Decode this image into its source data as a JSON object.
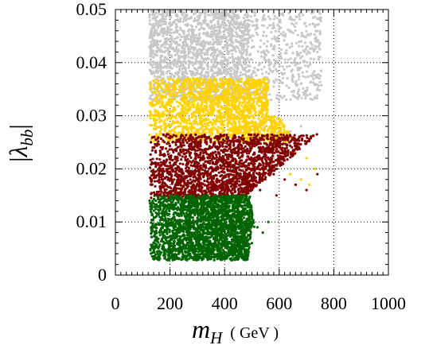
{
  "chart_data": {
    "type": "scatter",
    "title": "",
    "xlabel_main": "m",
    "xlabel_sub": "H",
    "xlabel_unit": "( GeV )",
    "ylabel_main": "λ",
    "ylabel_sub": "bb",
    "xlim": [
      0,
      1000
    ],
    "ylim": [
      0,
      0.05
    ],
    "x_ticks": [
      0,
      200,
      400,
      600,
      800,
      1000
    ],
    "x_tick_labels": [
      "0",
      "200",
      "400",
      "600",
      "800",
      "1000"
    ],
    "y_ticks": [
      0,
      0.01,
      0.02,
      0.03,
      0.04,
      0.05
    ],
    "y_tick_labels": [
      "0",
      "0.01",
      "0.02",
      "0.03",
      "0.04",
      "0.05"
    ],
    "grid": "dotted",
    "legend": "none",
    "series": [
      {
        "color": "#c8c8c8",
        "description_region": "y 0.035-0.05 broadly",
        "points": [
          [
            125,
            0.049
          ],
          [
            160,
            0.047
          ],
          [
            220,
            0.048
          ],
          [
            280,
            0.046
          ],
          [
            340,
            0.049
          ],
          [
            400,
            0.047
          ],
          [
            460,
            0.045
          ],
          [
            520,
            0.048
          ],
          [
            580,
            0.047
          ],
          [
            640,
            0.046
          ],
          [
            700,
            0.043
          ],
          [
            740,
            0.042
          ],
          [
            180,
            0.042
          ],
          [
            250,
            0.041
          ],
          [
            320,
            0.043
          ],
          [
            390,
            0.04
          ],
          [
            450,
            0.041
          ],
          [
            510,
            0.039
          ],
          [
            570,
            0.04
          ],
          [
            620,
            0.038
          ],
          [
            660,
            0.036
          ],
          [
            690,
            0.034
          ],
          [
            600,
            0.033
          ],
          [
            560,
            0.035
          ],
          [
            540,
            0.031
          ],
          [
            500,
            0.036
          ],
          [
            420,
            0.037
          ],
          [
            300,
            0.038
          ],
          [
            200,
            0.039
          ],
          [
            140,
            0.04
          ],
          [
            680,
            0.028
          ],
          [
            640,
            0.027
          ],
          [
            610,
            0.024
          ],
          [
            580,
            0.022
          ]
        ]
      },
      {
        "color": "#ffd200",
        "description_region": "y 0.025-0.037",
        "points": [
          [
            130,
            0.036
          ],
          [
            190,
            0.035
          ],
          [
            250,
            0.034
          ],
          [
            310,
            0.036
          ],
          [
            370,
            0.033
          ],
          [
            430,
            0.032
          ],
          [
            480,
            0.03
          ],
          [
            530,
            0.028
          ],
          [
            570,
            0.027
          ],
          [
            620,
            0.025
          ],
          [
            660,
            0.023
          ],
          [
            700,
            0.022
          ],
          [
            730,
            0.02
          ],
          [
            150,
            0.03
          ],
          [
            210,
            0.029
          ],
          [
            270,
            0.031
          ],
          [
            330,
            0.028
          ],
          [
            390,
            0.029
          ],
          [
            450,
            0.027
          ],
          [
            500,
            0.026
          ],
          [
            560,
            0.024
          ],
          [
            600,
            0.021
          ],
          [
            640,
            0.019
          ],
          [
            680,
            0.018
          ],
          [
            710,
            0.017
          ]
        ]
      },
      {
        "color": "#800000",
        "description_region": "y 0.015-0.026",
        "points": [
          [
            130,
            0.025
          ],
          [
            170,
            0.024
          ],
          [
            210,
            0.025
          ],
          [
            260,
            0.023
          ],
          [
            300,
            0.024
          ],
          [
            340,
            0.022
          ],
          [
            380,
            0.023
          ],
          [
            420,
            0.021
          ],
          [
            460,
            0.021
          ],
          [
            500,
            0.02
          ],
          [
            540,
            0.019
          ],
          [
            580,
            0.019
          ],
          [
            620,
            0.018
          ],
          [
            660,
            0.017
          ],
          [
            700,
            0.016
          ],
          [
            740,
            0.019
          ],
          [
            160,
            0.018
          ],
          [
            220,
            0.017
          ],
          [
            280,
            0.019
          ],
          [
            350,
            0.016
          ],
          [
            410,
            0.017
          ],
          [
            470,
            0.016
          ],
          [
            530,
            0.016
          ],
          [
            590,
            0.015
          ]
        ]
      },
      {
        "color": "#006400",
        "description_region": "y 0.003-0.015",
        "points": [
          [
            125,
            0.014
          ],
          [
            160,
            0.013
          ],
          [
            200,
            0.014
          ],
          [
            240,
            0.012
          ],
          [
            280,
            0.013
          ],
          [
            320,
            0.014
          ],
          [
            360,
            0.012
          ],
          [
            400,
            0.013
          ],
          [
            440,
            0.011
          ],
          [
            470,
            0.012
          ],
          [
            500,
            0.011
          ],
          [
            520,
            0.009
          ],
          [
            540,
            0.008
          ],
          [
            560,
            0.01
          ],
          [
            150,
            0.008
          ],
          [
            200,
            0.006
          ],
          [
            260,
            0.005
          ],
          [
            330,
            0.004
          ],
          [
            400,
            0.003
          ],
          [
            460,
            0.004
          ],
          [
            500,
            0.006
          ]
        ]
      }
    ]
  }
}
